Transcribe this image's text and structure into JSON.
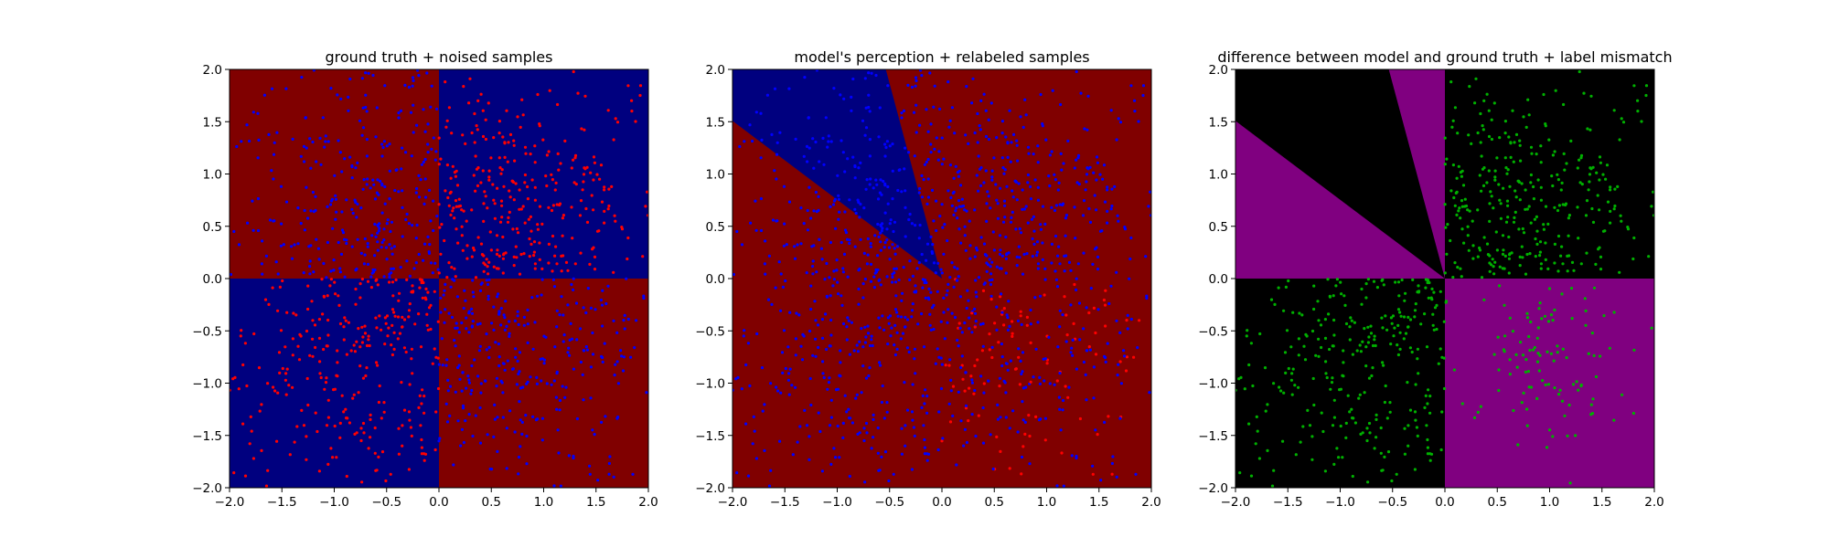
{
  "figure": {
    "background": "#ffffff",
    "description_colors": {
      "red_region": "#800000",
      "blue_region": "#00007f",
      "purple_region": "#800080",
      "black_region": "#000000",
      "red_point": "#ff0000",
      "blue_point": "#0000ff",
      "green_point": "#00b000"
    }
  },
  "chart_data": [
    {
      "type": "scatter",
      "title": "ground truth + noised samples",
      "xlim": [
        -2.0,
        2.0
      ],
      "ylim": [
        -2.0,
        2.0
      ],
      "x_ticks": [
        "−2.0",
        "−1.5",
        "−1.0",
        "−0.5",
        "0.0",
        "0.5",
        "1.0",
        "1.5",
        "2.0"
      ],
      "y_ticks": [
        "−2.0",
        "−1.5",
        "−1.0",
        "−0.5",
        "0.0",
        "0.5",
        "1.0",
        "1.5",
        "2.0"
      ],
      "grid": false,
      "background_regions": [
        {
          "region": "x<0, y>0",
          "label": "red",
          "color": "#800000"
        },
        {
          "region": "x>0, y>0",
          "label": "blue",
          "color": "#00007f"
        },
        {
          "region": "x<0, y<0",
          "label": "blue",
          "color": "#00007f"
        },
        {
          "region": "x>0, y<0",
          "label": "red",
          "color": "#800000"
        }
      ],
      "point_series": [
        {
          "color": "#ff0000",
          "region": "x>0, y>0",
          "approx_count": 320
        },
        {
          "color": "#ff0000",
          "region": "x<0, y<0",
          "approx_count": 320
        },
        {
          "color": "#0000ff",
          "region": "x<0, y>0",
          "approx_count": 320
        },
        {
          "color": "#0000ff",
          "region": "x>0, y<0",
          "approx_count": 320
        }
      ]
    },
    {
      "type": "scatter",
      "title": "model's perception + relabeled samples",
      "xlim": [
        -2.0,
        2.0
      ],
      "ylim": [
        -2.0,
        2.0
      ],
      "x_ticks": [
        "−2.0",
        "−1.5",
        "−1.0",
        "−0.5",
        "0.0",
        "0.5",
        "1.0",
        "1.5",
        "2.0"
      ],
      "y_ticks": [
        "−2.0",
        "−1.5",
        "−1.0",
        "−0.5",
        "0.0",
        "0.5",
        "1.0",
        "1.5",
        "2.0"
      ],
      "grid": false,
      "background_regions": [
        {
          "region": "wedge from origin, angle 105°–143°",
          "label": "blue",
          "color": "#00007f"
        },
        {
          "region": "remainder",
          "label": "red",
          "color": "#800000"
        }
      ],
      "wedge_angles_deg": [
        105,
        143
      ],
      "point_series": [
        {
          "color": "#0000ff",
          "region": "predicted blue or mismatched",
          "approx_count": 1100
        },
        {
          "color": "#ff0000",
          "region": "x>0, y<0 (dense near y≈-0.5)",
          "approx_count": 180
        }
      ]
    },
    {
      "type": "scatter",
      "title": "difference between model and ground truth + label mismatch",
      "xlim": [
        -2.0,
        2.0
      ],
      "ylim": [
        -2.0,
        2.0
      ],
      "x_ticks": [
        "−2.0",
        "−1.5",
        "−1.0",
        "−0.5",
        "0.0",
        "0.5",
        "1.0",
        "1.5",
        "2.0"
      ],
      "y_ticks": [
        "−2.0",
        "−1.5",
        "−1.0",
        "−0.5",
        "0.0",
        "0.5",
        "1.0",
        "1.5",
        "2.0"
      ],
      "grid": false,
      "background_regions": [
        {
          "region": "x>0, y<0",
          "label": "mismatch",
          "color": "#800080"
        },
        {
          "region": "wedge 90°–105° and 143°–180°",
          "label": "mismatch",
          "color": "#800080"
        },
        {
          "region": "remainder",
          "label": "match",
          "color": "#000000"
        }
      ],
      "point_series": [
        {
          "color": "#00b000",
          "region": "x>0, y>0",
          "approx_count": 280
        },
        {
          "color": "#00b000",
          "region": "x<0, y<0",
          "approx_count": 260
        },
        {
          "color": "#00b000",
          "region": "x>0, y<0",
          "approx_count": 120
        }
      ]
    }
  ]
}
